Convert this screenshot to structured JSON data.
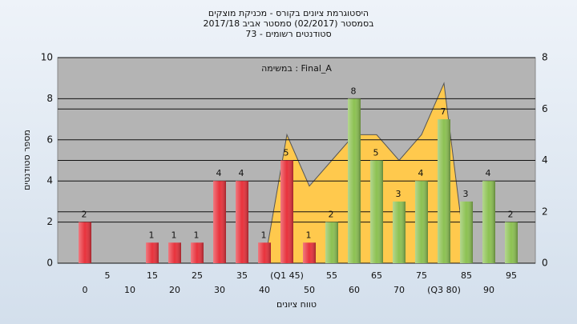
{
  "chart_data": {
    "type": "bar",
    "title": [
      "היסטוגרמת ציונים בקורס - מכניקת מוצקים",
      "בסמסטר  (02/2017)  סמסטר אביב 2017/18",
      "סטודנטים רשומים - 73"
    ],
    "annotation": "במשימה : Final_A",
    "x_label": "טווח ציונים",
    "y_label": "מספר סטודנטים",
    "categories": [
      "0",
      "5",
      "10",
      "15",
      "20",
      "25",
      "30",
      "35",
      "40",
      "(Q1 45)",
      "50",
      "55",
      "60",
      "65",
      "70",
      "75",
      "(Q3 80)",
      "85",
      "90",
      "95"
    ],
    "values": [
      2,
      null,
      null,
      1,
      1,
      1,
      4,
      4,
      1,
      5,
      1,
      2,
      8,
      5,
      3,
      4,
      7,
      3,
      4,
      2
    ],
    "colors": [
      "#e8323c",
      "#e8323c",
      "#e8323c",
      "#e8323c",
      "#e8323c",
      "#e8323c",
      "#e8323c",
      "#e8323c",
      "#e8323c",
      "#e8323c",
      "#e8323c",
      "#8cc152",
      "#8cc152",
      "#8cc152",
      "#8cc152",
      "#8cc152",
      "#8cc152",
      "#8cc152",
      "#8cc152",
      "#8cc152"
    ],
    "area": {
      "color": "#ffc94d",
      "axis": "y2",
      "values": [
        null,
        null,
        null,
        null,
        null,
        null,
        null,
        null,
        0,
        5,
        3,
        4,
        5,
        5,
        4,
        5,
        7,
        0,
        null,
        null
      ]
    },
    "ylim": [
      0,
      10
    ],
    "yticks": [
      0,
      2,
      4,
      6,
      8,
      10
    ],
    "y2lim": [
      0,
      8
    ],
    "y2ticks": [
      0,
      2,
      4,
      6,
      8
    ],
    "grid": true
  }
}
